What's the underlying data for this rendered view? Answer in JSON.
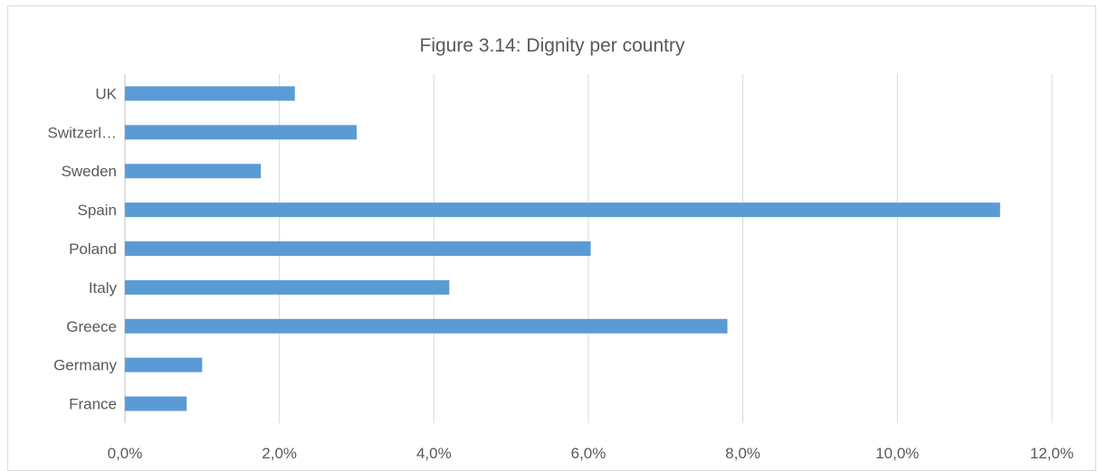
{
  "chart_data": {
    "type": "bar",
    "orientation": "horizontal",
    "title": "Figure 3.14: Dignity per country",
    "categories": [
      "UK",
      "Switzerl…",
      "Sweden",
      "Spain",
      "Poland",
      "Italy",
      "Greece",
      "Germany",
      "France"
    ],
    "values": [
      2.2,
      3.0,
      1.76,
      11.33,
      6.03,
      4.2,
      7.8,
      1.0,
      0.8
    ],
    "value_unit": "%",
    "xlim": [
      0,
      12
    ],
    "xticks": [
      "0,0%",
      "2,0%",
      "4,0%",
      "6,0%",
      "8,0%",
      "10,0%",
      "12,0%"
    ],
    "xtick_values": [
      0,
      2,
      4,
      6,
      8,
      10,
      12
    ],
    "grid": true,
    "bar_color": "#5B9BD5",
    "legend": false
  }
}
